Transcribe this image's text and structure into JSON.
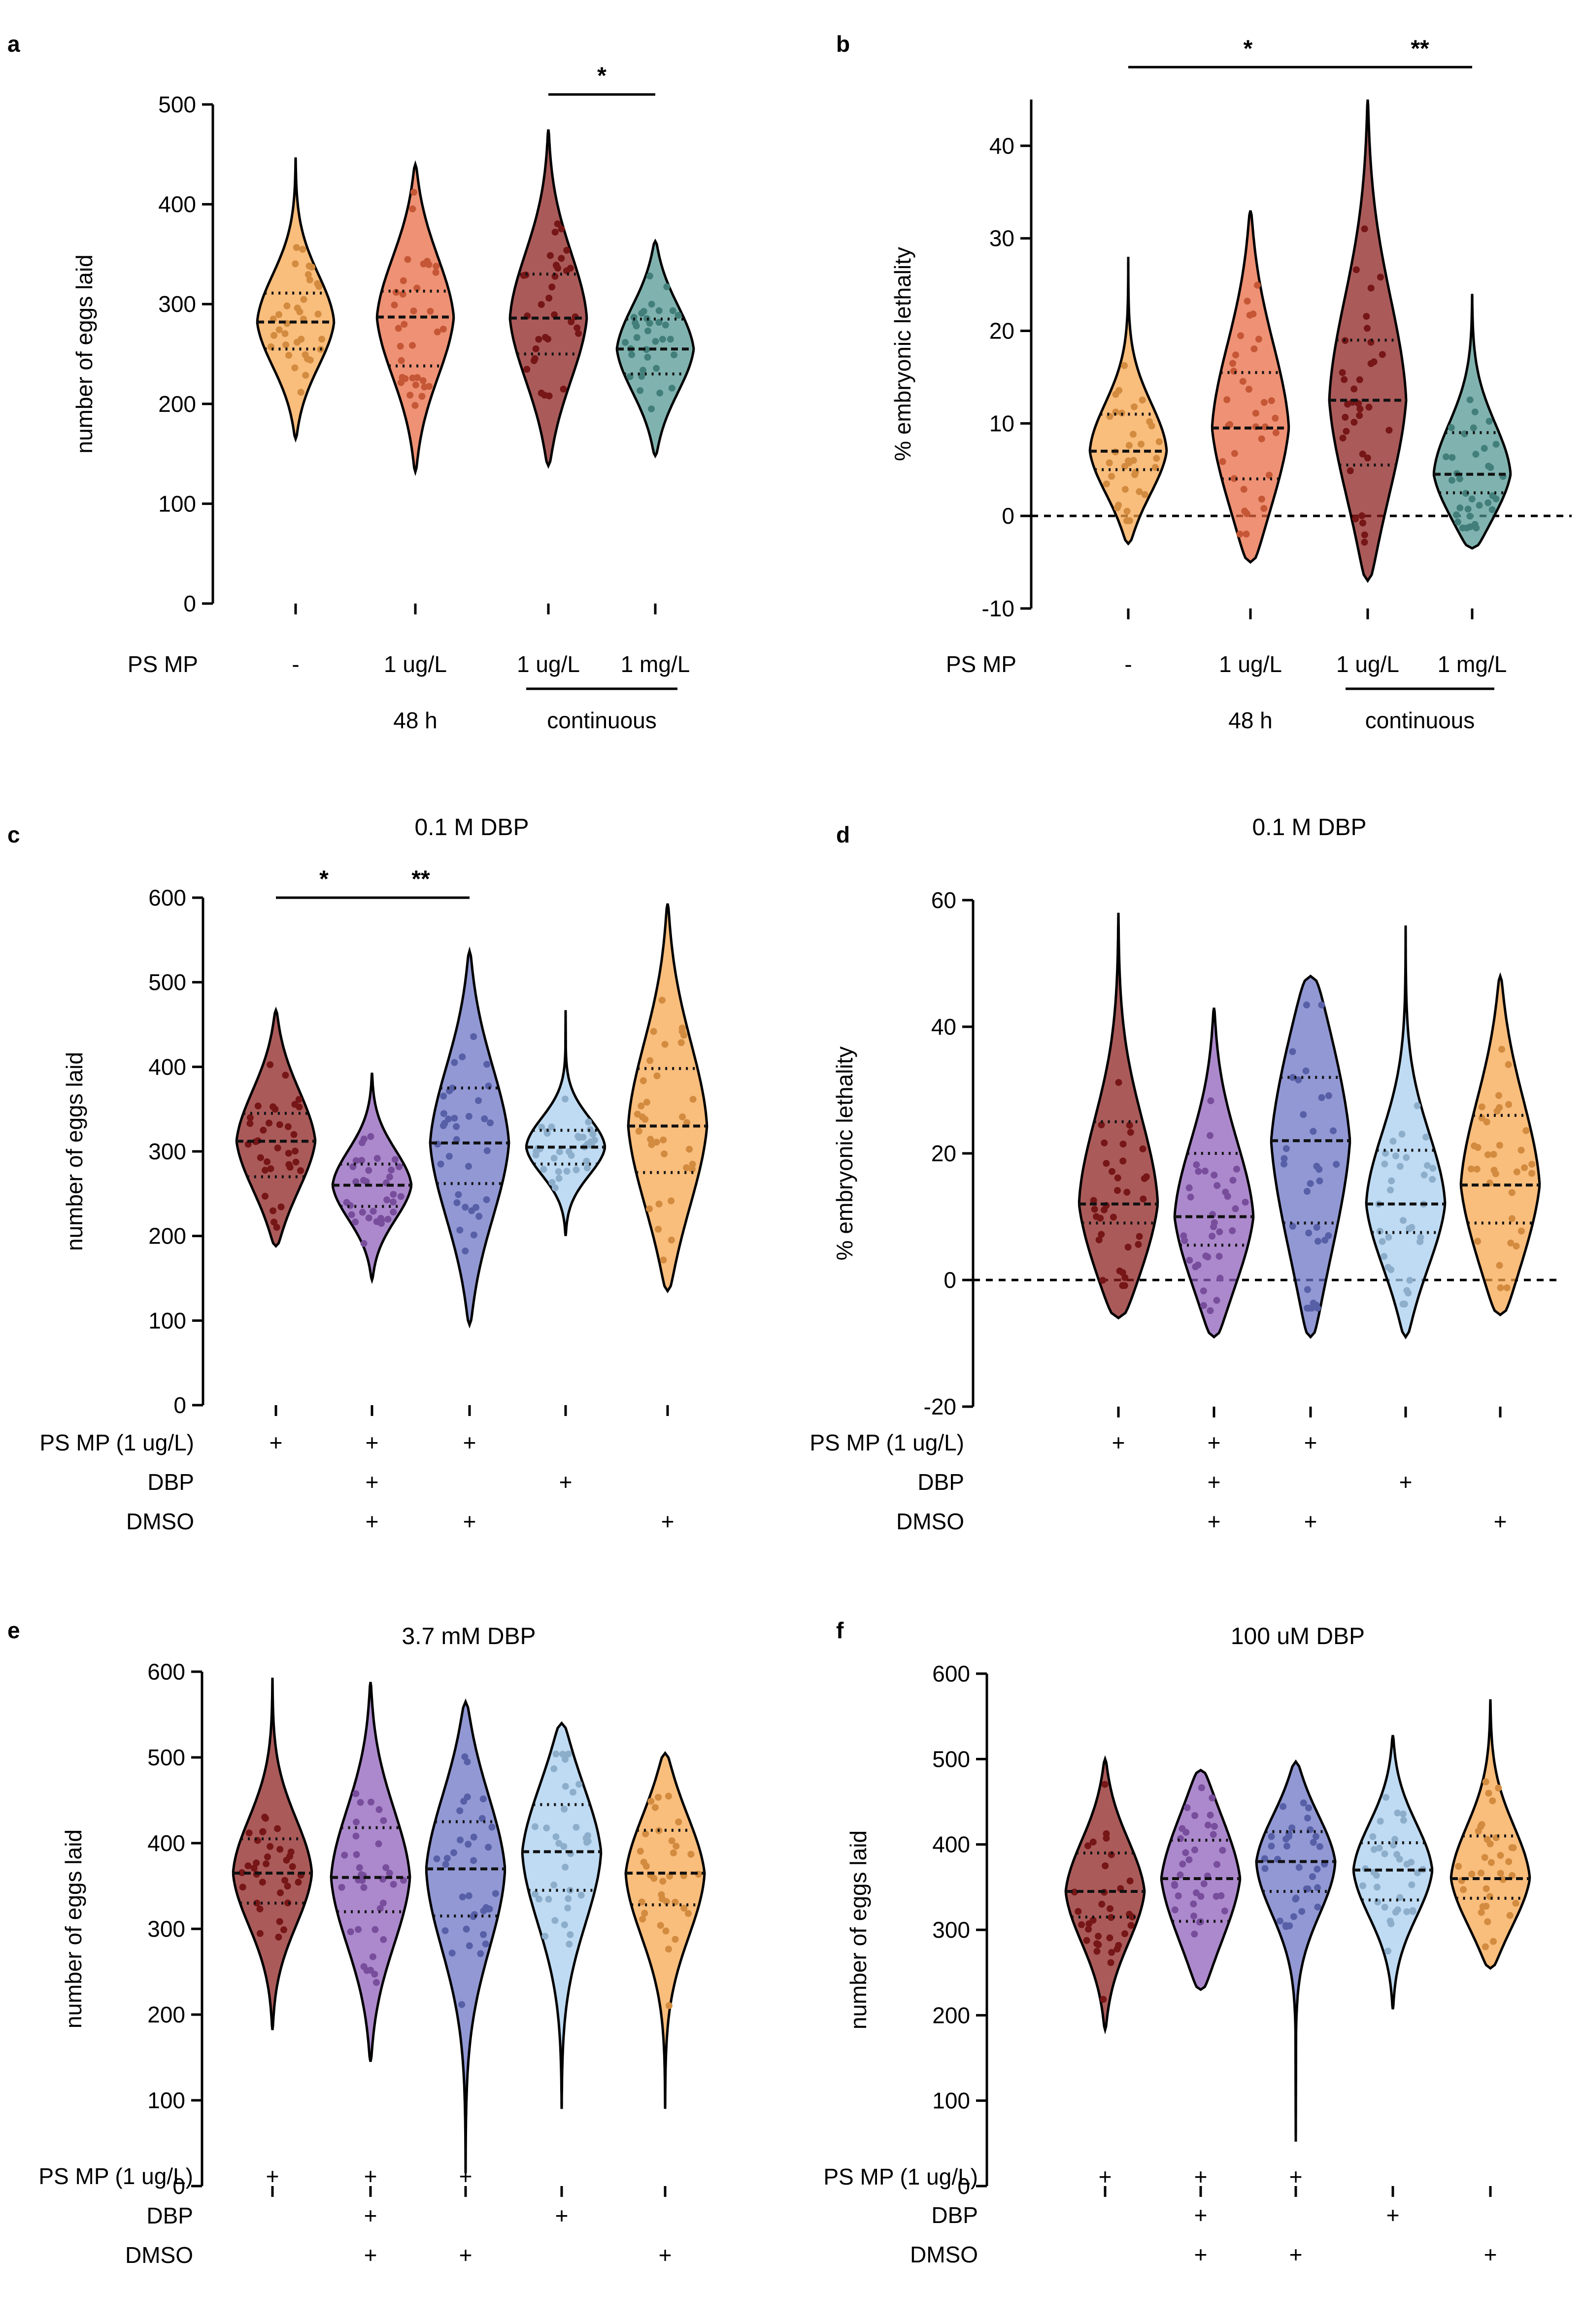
{
  "panels": [
    {
      "id": "a",
      "title": "",
      "ylabel": "number of eggs laid",
      "ylim": [
        0,
        500
      ],
      "yticks": [
        0,
        100,
        200,
        300,
        400,
        500
      ],
      "zero_line": false,
      "groups": [
        {
          "median": 282,
          "q1": 255,
          "q3": 311,
          "color": "#f7a44a",
          "ymin": 165,
          "ymax": 447
        },
        {
          "median": 287,
          "q1": 238,
          "q3": 313,
          "color": "#e8663f",
          "ymin": 132,
          "ymax": 440
        },
        {
          "median": 286,
          "q1": 250,
          "q3": 330,
          "color": "#8b1a1a",
          "ymin": 138,
          "ymax": 475
        },
        {
          "median": 255,
          "q1": 230,
          "q3": 285,
          "color": "#4f9590",
          "ymin": 148,
          "ymax": 363
        }
      ],
      "row_labels": [
        {
          "name": "PS MP",
          "values": [
            "-",
            "1 ug/L",
            "1 ug/L",
            "1 mg/L"
          ]
        }
      ],
      "group_bars": [
        {
          "label": "48 h",
          "from": 1,
          "to": 1,
          "line": false
        },
        {
          "label": "continuous",
          "from": 2,
          "to": 3,
          "line": true
        }
      ],
      "sig": [
        {
          "from": 2,
          "to": 3,
          "y": 510,
          "label": "*"
        }
      ]
    },
    {
      "id": "b",
      "title": "",
      "ylabel": "% embryonic lethality",
      "ylim": [
        -10,
        45
      ],
      "yticks": [
        -10,
        0,
        10,
        20,
        30,
        40
      ],
      "zero_line": true,
      "groups": [
        {
          "median": 7,
          "q1": 5,
          "q3": 11,
          "color": "#f7a44a",
          "ymin": -3,
          "ymax": 28
        },
        {
          "median": 9.5,
          "q1": 4,
          "q3": 15.5,
          "color": "#e8663f",
          "ymin": -5,
          "ymax": 33
        },
        {
          "median": 12.5,
          "q1": 5.5,
          "q3": 19,
          "color": "#8b1a1a",
          "ymin": -7,
          "ymax": 45
        },
        {
          "median": 4.5,
          "q1": 2.5,
          "q3": 9,
          "color": "#4f9590",
          "ymin": -3.5,
          "ymax": 24
        }
      ],
      "row_labels": [
        {
          "name": "PS MP",
          "values": [
            "-",
            "1 ug/L",
            "1 ug/L",
            "1 mg/L"
          ]
        }
      ],
      "group_bars": [
        {
          "label": "48 h",
          "from": 1,
          "to": 1,
          "line": false
        },
        {
          "label": "continuous",
          "from": 2,
          "to": 3,
          "line": true
        }
      ],
      "sig": [
        {
          "from": 0,
          "to": 2,
          "y": 48.5,
          "label": "*"
        },
        {
          "from": 2,
          "to": 3,
          "y": 48.5,
          "label": "**"
        }
      ]
    },
    {
      "id": "c",
      "title": "0.1 M DBP",
      "ylabel": "number of eggs laid",
      "ylim": [
        0,
        600
      ],
      "yticks": [
        0,
        100,
        200,
        300,
        400,
        500,
        600
      ],
      "zero_line": false,
      "groups": [
        {
          "median": 312,
          "q1": 270,
          "q3": 345,
          "color": "#8b1a1a",
          "ymin": 188,
          "ymax": 467
        },
        {
          "median": 260,
          "q1": 235,
          "q3": 285,
          "color": "#8c5bb8",
          "ymin": 148,
          "ymax": 393
        },
        {
          "median": 310,
          "q1": 262,
          "q3": 375,
          "color": "#6670c4",
          "ymin": 95,
          "ymax": 537
        },
        {
          "median": 305,
          "q1": 285,
          "q3": 325,
          "color": "#a6cdef",
          "ymin": 200,
          "ymax": 467
        },
        {
          "median": 330,
          "q1": 275,
          "q3": 398,
          "color": "#f7a44a",
          "ymin": 135,
          "ymax": 593
        }
      ],
      "row_labels": [
        {
          "name": "PS MP (1 ug/L)",
          "values": [
            "+",
            "+",
            "+",
            "",
            ""
          ]
        },
        {
          "name": "DBP",
          "values": [
            "",
            "+",
            "",
            "+",
            ""
          ]
        },
        {
          "name": "DMSO",
          "values": [
            "",
            "+",
            "+",
            "",
            "+"
          ]
        }
      ],
      "group_bars": [],
      "sig": [
        {
          "from": 0,
          "to": 1,
          "y": 600,
          "label": "*"
        },
        {
          "from": 1,
          "to": 2,
          "y": 600,
          "label": "**"
        }
      ]
    },
    {
      "id": "d",
      "title": "0.1 M DBP",
      "ylabel": "% embryonic lethality",
      "ylim": [
        -20,
        60
      ],
      "yticks": [
        -20,
        0,
        20,
        40,
        60
      ],
      "zero_line": true,
      "groups": [
        {
          "median": 12,
          "q1": 9,
          "q3": 25,
          "color": "#8b1a1a",
          "ymin": -6,
          "ymax": 58
        },
        {
          "median": 10,
          "q1": 5.5,
          "q3": 20,
          "color": "#8c5bb8",
          "ymin": -9,
          "ymax": 43
        },
        {
          "median": 22,
          "q1": 9,
          "q3": 32,
          "color": "#6670c4",
          "ymin": -9,
          "ymax": 48
        },
        {
          "median": 12,
          "q1": 7.5,
          "q3": 20.5,
          "color": "#a6cdef",
          "ymin": -9,
          "ymax": 56
        },
        {
          "median": 15,
          "q1": 9,
          "q3": 26,
          "color": "#f7a44a",
          "ymin": -5.5,
          "ymax": 48
        }
      ],
      "row_labels": [
        {
          "name": "PS MP (1 ug/L)",
          "values": [
            "+",
            "+",
            "+",
            "",
            ""
          ]
        },
        {
          "name": "DBP",
          "values": [
            "",
            "+",
            "",
            "+",
            ""
          ]
        },
        {
          "name": "DMSO",
          "values": [
            "",
            "+",
            "+",
            "",
            "+"
          ]
        }
      ],
      "group_bars": [],
      "sig": []
    },
    {
      "id": "e",
      "title": "3.7 mM DBP",
      "ylabel": "number of eggs laid",
      "ylim": [
        0,
        600
      ],
      "yticks": [
        0,
        100,
        200,
        300,
        400,
        500,
        600
      ],
      "zero_line": false,
      "groups": [
        {
          "median": 365,
          "q1": 330,
          "q3": 405,
          "color": "#8b1a1a",
          "ymin": 182,
          "ymax": 593
        },
        {
          "median": 360,
          "q1": 320,
          "q3": 418,
          "color": "#8c5bb8",
          "ymin": 145,
          "ymax": 588
        },
        {
          "median": 370,
          "q1": 315,
          "q3": 425,
          "color": "#6670c4",
          "ymin": 15,
          "ymax": 565
        },
        {
          "median": 390,
          "q1": 345,
          "q3": 445,
          "color": "#a6cdef",
          "ymin": 90,
          "ymax": 540
        },
        {
          "median": 365,
          "q1": 328,
          "q3": 415,
          "color": "#f7a44a",
          "ymin": 90,
          "ymax": 505
        }
      ],
      "row_labels": [
        {
          "name": "PS MP (1 ug/L)",
          "values": [
            "+",
            "+",
            "+",
            "",
            ""
          ]
        },
        {
          "name": "DBP",
          "values": [
            "",
            "+",
            "",
            "+",
            ""
          ]
        },
        {
          "name": "DMSO",
          "values": [
            "",
            "+",
            "+",
            "",
            "+"
          ]
        }
      ],
      "group_bars": [],
      "sig": []
    },
    {
      "id": "f",
      "title": "100 uM DBP",
      "ylabel": "number of eggs laid",
      "ylim": [
        0,
        600
      ],
      "yticks": [
        0,
        100,
        200,
        300,
        400,
        500,
        600
      ],
      "zero_line": false,
      "groups": [
        {
          "median": 345,
          "q1": 315,
          "q3": 390,
          "color": "#8b1a1a",
          "ymin": 183,
          "ymax": 500
        },
        {
          "median": 360,
          "q1": 310,
          "q3": 405,
          "color": "#8c5bb8",
          "ymin": 230,
          "ymax": 487
        },
        {
          "median": 380,
          "q1": 345,
          "q3": 415,
          "color": "#6670c4",
          "ymin": 52,
          "ymax": 497
        },
        {
          "median": 370,
          "q1": 335,
          "q3": 402,
          "color": "#a6cdef",
          "ymin": 207,
          "ymax": 528
        },
        {
          "median": 360,
          "q1": 337,
          "q3": 410,
          "color": "#f7a44a",
          "ymin": 255,
          "ymax": 570
        }
      ],
      "row_labels": [
        {
          "name": "PS MP (1 ug/L)",
          "values": [
            "+",
            "+",
            "+",
            "",
            ""
          ]
        },
        {
          "name": "DBP",
          "values": [
            "",
            "+",
            "",
            "+",
            ""
          ]
        },
        {
          "name": "DMSO",
          "values": [
            "",
            "+",
            "+",
            "",
            "+"
          ]
        }
      ],
      "group_bars": [],
      "sig": []
    }
  ],
  "chart_data": [
    {
      "type": "violin",
      "panel": "a",
      "title": "",
      "xlabel": "PS MP",
      "ylabel": "number of eggs laid",
      "categories": [
        "- (48 h)",
        "1 ug/L (48 h)",
        "1 ug/L (continuous)",
        "1 mg/L (continuous)"
      ],
      "medians": [
        282,
        287,
        286,
        255
      ],
      "q1": [
        255,
        238,
        250,
        230
      ],
      "q3": [
        311,
        313,
        330,
        285
      ],
      "ylim": [
        0,
        500
      ],
      "annotations": [
        "* between 1 ug/L continuous and 1 mg/L continuous"
      ]
    },
    {
      "type": "violin",
      "panel": "b",
      "title": "",
      "xlabel": "PS MP",
      "ylabel": "% embryonic lethality",
      "categories": [
        "- (48 h)",
        "1 ug/L (48 h)",
        "1 ug/L (continuous)",
        "1 mg/L (continuous)"
      ],
      "medians": [
        7,
        9.5,
        12.5,
        4.5
      ],
      "q1": [
        5,
        4,
        5.5,
        2.5
      ],
      "q3": [
        11,
        15.5,
        19,
        9
      ],
      "ylim": [
        -10,
        45
      ],
      "annotations": [
        "* between - and 1 ug/L continuous",
        "** between 1 ug/L continuous and 1 mg/L"
      ]
    },
    {
      "type": "violin",
      "panel": "c",
      "title": "0.1 M DBP",
      "ylabel": "number of eggs laid",
      "categories": [
        "PS MP",
        "PS MP + DBP + DMSO",
        "PS MP + DMSO",
        "DBP",
        "DMSO"
      ],
      "medians": [
        312,
        260,
        310,
        305,
        330
      ],
      "q1": [
        270,
        235,
        262,
        285,
        275
      ],
      "q3": [
        345,
        285,
        375,
        325,
        398
      ],
      "ylim": [
        0,
        600
      ],
      "annotations": [
        "* between groups 1 and 2",
        "** between groups 2 and 3"
      ]
    },
    {
      "type": "violin",
      "panel": "d",
      "title": "0.1 M DBP",
      "ylabel": "% embryonic lethality",
      "categories": [
        "PS MP",
        "PS MP + DBP + DMSO",
        "PS MP + DMSO",
        "DBP",
        "DMSO"
      ],
      "medians": [
        12,
        10,
        22,
        12,
        15
      ],
      "q1": [
        9,
        5.5,
        9,
        7.5,
        9
      ],
      "q3": [
        25,
        20,
        32,
        20.5,
        26
      ],
      "ylim": [
        -20,
        60
      ]
    },
    {
      "type": "violin",
      "panel": "e",
      "title": "3.7 mM DBP",
      "ylabel": "number of eggs laid",
      "categories": [
        "PS MP",
        "PS MP + DBP + DMSO",
        "PS MP + DMSO",
        "DBP",
        "DMSO"
      ],
      "medians": [
        365,
        360,
        370,
        390,
        365
      ],
      "q1": [
        330,
        320,
        315,
        345,
        328
      ],
      "q3": [
        405,
        418,
        425,
        445,
        415
      ],
      "ylim": [
        0,
        600
      ]
    },
    {
      "type": "violin",
      "panel": "f",
      "title": "100 uM DBP",
      "ylabel": "number of eggs laid",
      "categories": [
        "PS MP",
        "PS MP + DBP + DMSO",
        "PS MP + DMSO",
        "DBP",
        "DMSO"
      ],
      "medians": [
        345,
        360,
        380,
        370,
        360
      ],
      "q1": [
        315,
        310,
        345,
        335,
        337
      ],
      "q3": [
        390,
        405,
        415,
        402,
        410
      ],
      "ylim": [
        0,
        600
      ]
    }
  ]
}
